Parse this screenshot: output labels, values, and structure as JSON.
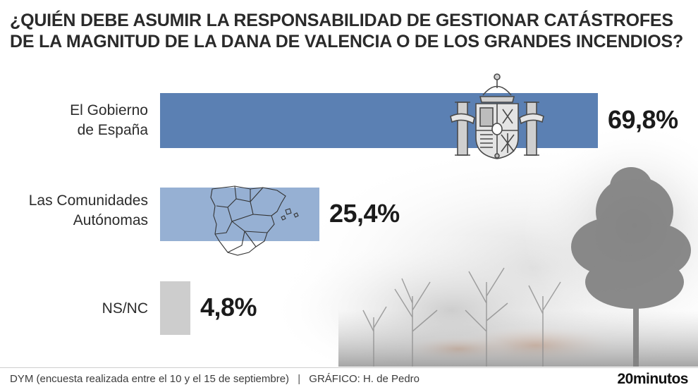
{
  "title_lines": [
    "¿QUIÉN DEBE ASUMIR LA RESPONSABILIDAD DE GESTIONAR CATÁSTROFES",
    "DE LA MAGNITUD DE LA DANA DE VALENCIA O DE LOS GRANDES INCENDIOS?"
  ],
  "chart_data": {
    "type": "bar",
    "orientation": "horizontal",
    "categories": [
      [
        "El Gobierno",
        "de España"
      ],
      [
        "Las Comunidades",
        "Autónomas"
      ],
      [
        "NS/NC"
      ]
    ],
    "values": [
      69.8,
      25.4,
      4.8
    ],
    "value_labels": [
      "69,8%",
      "25,4%",
      "4,8%"
    ],
    "unit": "%",
    "colors": [
      "#5b80b3",
      "#96b0d3",
      "#cdcdcd"
    ],
    "xlim": [
      0,
      100
    ]
  },
  "footer": {
    "source": "DYM (encuesta realizada entre el 10 y el 15 de septiembre)",
    "separator": "|",
    "credit": "GRÁFICO: H. de Pedro"
  },
  "brand": "20minutos",
  "decorations": [
    "spain-coat-of-arms-icon",
    "spain-regions-map-icon",
    "forest-fire-smoke-image"
  ]
}
